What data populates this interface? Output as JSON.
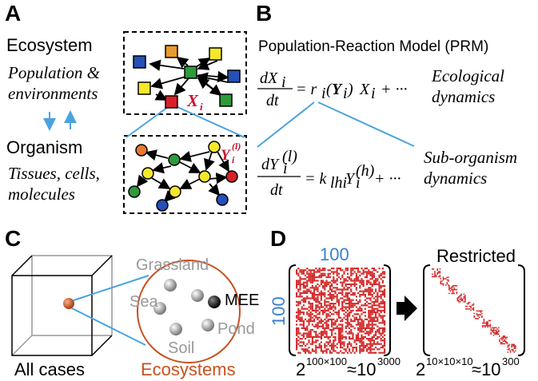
{
  "panels": {
    "a": {
      "label": "A",
      "ecosystem": "Ecosystem",
      "ecosystem_desc": [
        "Population &",
        "environments"
      ],
      "organism": "Organism",
      "organism_desc": [
        "Tissues, cells,",
        "molecules"
      ],
      "x_label": {
        "base": "X",
        "sub": "i"
      },
      "y_label": {
        "base": "Y",
        "sub": "i",
        "sup": "(l)"
      }
    },
    "b": {
      "label": "B",
      "title": "Population-Reaction Model (PRM)",
      "eq1": {
        "num": "dX",
        "num_sub": "i",
        "den": "dt",
        "r": "= r",
        "r_sub": "i",
        "open": "(",
        "Y": "Y",
        "Y_sub": "i",
        "close": ")",
        "X": "X",
        "X_sub": "i",
        "tail": "+ ···"
      },
      "eq1_note": [
        "Ecological",
        "dynamics"
      ],
      "eq2": {
        "num": "dY",
        "num_sub": "i",
        "num_sup": "(l)",
        "den": "dt",
        "k": "= k",
        "k_sub": "lhi",
        "Y": "Y",
        "Y_sub": "i",
        "Y_sup": "(h)",
        "tail": "+ ···"
      },
      "eq2_note": [
        "Sub-organism",
        "dynamics"
      ]
    },
    "c": {
      "label": "C",
      "grassland": "Grassland",
      "sea": "Sea",
      "mee": "MEE",
      "pond": "Pond",
      "soil": "Soil",
      "all_cases": "All cases",
      "ecosystems": "Ecosystems"
    },
    "d": {
      "label": "D",
      "size_top": "100",
      "size_left": "100",
      "restricted": "Restricted",
      "left_count": {
        "base": "2",
        "exp": "100×100",
        "approx": "≈10",
        "exp2": "3000"
      },
      "right_count": {
        "base": "2",
        "exp": "10×10×10",
        "approx": "≈10",
        "exp2": "300"
      }
    }
  }
}
